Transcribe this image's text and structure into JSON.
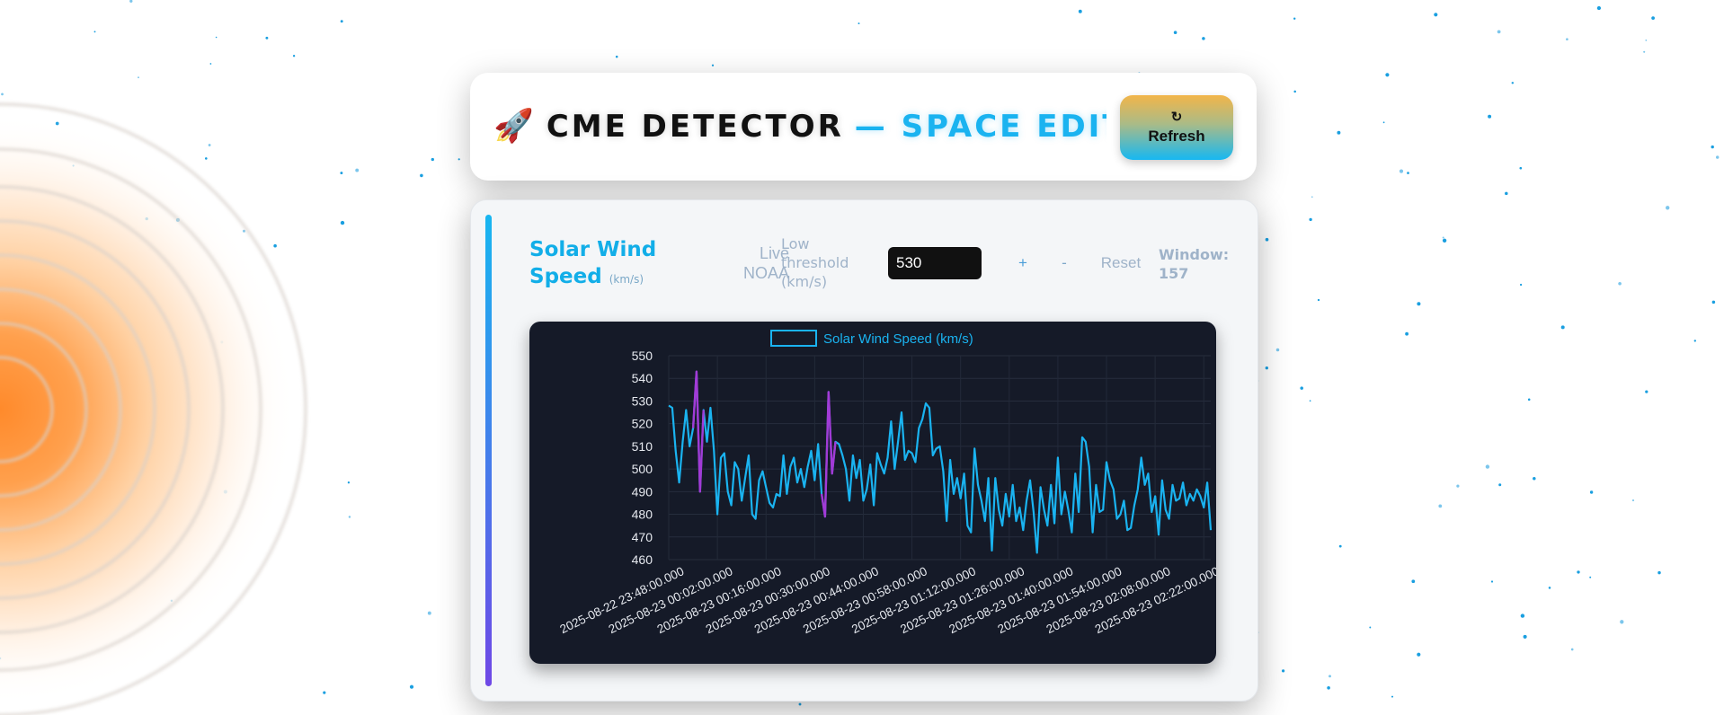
{
  "header": {
    "rocket_icon": "🚀",
    "title_main": "CME DETECTOR",
    "title_sub": "— SPACE EDITION",
    "refresh_icon": "↻",
    "refresh_label": "Refresh"
  },
  "panel": {
    "title": "Solar Wind Speed",
    "unit": "(km/s)",
    "live_label": "Live NOAA",
    "threshold_label": "Low threshold (km/s)",
    "threshold_value": "530",
    "plus_label": "+",
    "minus_label": "-",
    "reset_label": "Reset",
    "window_label": "Window: 157"
  },
  "colors": {
    "accent": "#1ab3f0",
    "line": "#1ab3f0",
    "anomaly": "#a23ad6",
    "chart_bg": "#151a28"
  },
  "chart_data": {
    "type": "line",
    "legend": "Solar Wind Speed (km/s)",
    "legend_position": "top",
    "grid": true,
    "ylim": [
      460,
      550
    ],
    "yticks": [
      550,
      540,
      530,
      520,
      510,
      500,
      490,
      480,
      470,
      460
    ],
    "xticks": [
      "2025-08-22 23:48:00.000",
      "2025-08-23 00:02:00.000",
      "2025-08-23 00:16:00.000",
      "2025-08-23 00:30:00.000",
      "2025-08-23 00:44:00.000",
      "2025-08-23 00:58:00.000",
      "2025-08-23 01:12:00.000",
      "2025-08-23 01:26:00.000",
      "2025-08-23 01:40:00.000",
      "2025-08-23 01:54:00.000",
      "2025-08-23 02:08:00.000",
      "2025-08-23 02:22:00.000"
    ],
    "series": [
      {
        "name": "Solar Wind Speed (km/s)",
        "values": [
          528,
          527,
          508,
          494,
          512,
          526,
          510,
          518,
          543,
          490,
          526,
          512,
          527,
          508,
          480,
          505,
          507,
          490,
          484,
          503,
          500,
          486,
          496,
          506,
          480,
          478,
          495,
          499,
          492,
          485,
          483,
          489,
          488,
          506,
          489,
          501,
          505,
          494,
          500,
          492,
          501,
          508,
          495,
          511,
          489,
          479,
          534,
          498,
          512,
          511,
          506,
          500,
          486,
          506,
          496,
          504,
          486,
          491,
          502,
          484,
          507,
          502,
          498,
          505,
          521,
          500,
          512,
          525,
          504,
          508,
          507,
          503,
          518,
          522,
          529,
          527,
          506,
          509,
          510,
          499,
          477,
          504,
          489,
          496,
          487,
          498,
          475,
          472,
          509,
          493,
          486,
          477,
          496,
          464,
          496,
          482,
          475,
          489,
          479,
          493,
          477,
          483,
          473,
          486,
          495,
          481,
          463,
          492,
          482,
          475,
          493,
          476,
          505,
          480,
          490,
          482,
          472,
          498,
          481,
          514,
          512,
          501,
          472,
          493,
          481,
          482,
          503,
          495,
          491,
          478,
          480,
          486,
          473,
          474,
          484,
          491,
          505,
          493,
          498,
          481,
          488,
          471,
          495,
          482,
          478,
          493,
          486,
          487,
          494,
          484,
          489,
          486,
          491,
          488,
          483,
          494,
          473
        ]
      }
    ],
    "anomalies": [
      {
        "start": 8,
        "end": 9
      },
      {
        "start": 45,
        "end": 47
      }
    ]
  }
}
